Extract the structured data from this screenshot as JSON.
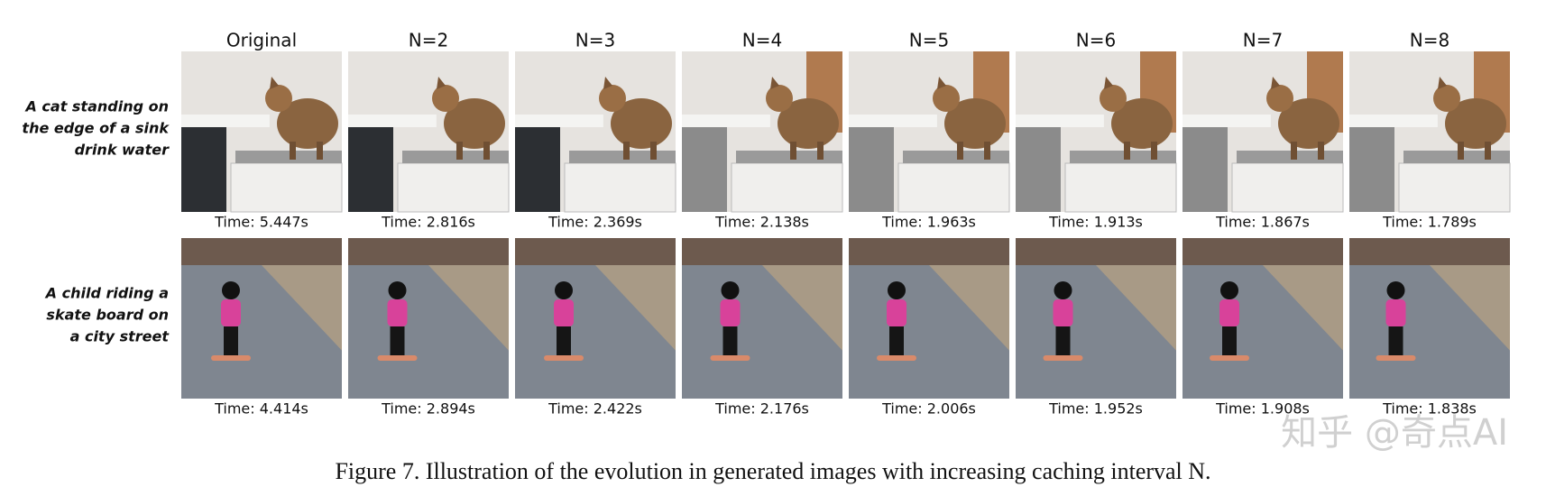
{
  "figure": {
    "columns": [
      "Original",
      "N=2",
      "N=3",
      "N=4",
      "N=5",
      "N=6",
      "N=7",
      "N=8"
    ],
    "rows": [
      {
        "prompt": [
          "A cat standing on",
          "the edge of a sink",
          "drink water"
        ],
        "times": [
          "Time: 5.447s",
          "Time: 2.816s",
          "Time: 2.369s",
          "Time: 2.138s",
          "Time: 1.963s",
          "Time: 1.913s",
          "Time: 1.867s",
          "Time: 1.789s"
        ]
      },
      {
        "prompt": [
          "A child riding a",
          "skate board on",
          "a city street"
        ],
        "times": [
          "Time: 4.414s",
          "Time: 2.894s",
          "Time: 2.422s",
          "Time: 2.176s",
          "Time: 2.006s",
          "Time: 1.952s",
          "Time: 1.908s",
          "Time: 1.838s"
        ]
      }
    ],
    "caption": "Figure 7. Illustration of the evolution in generated images with increasing caching interval N.",
    "watermark": "知乎 @奇点AI"
  }
}
